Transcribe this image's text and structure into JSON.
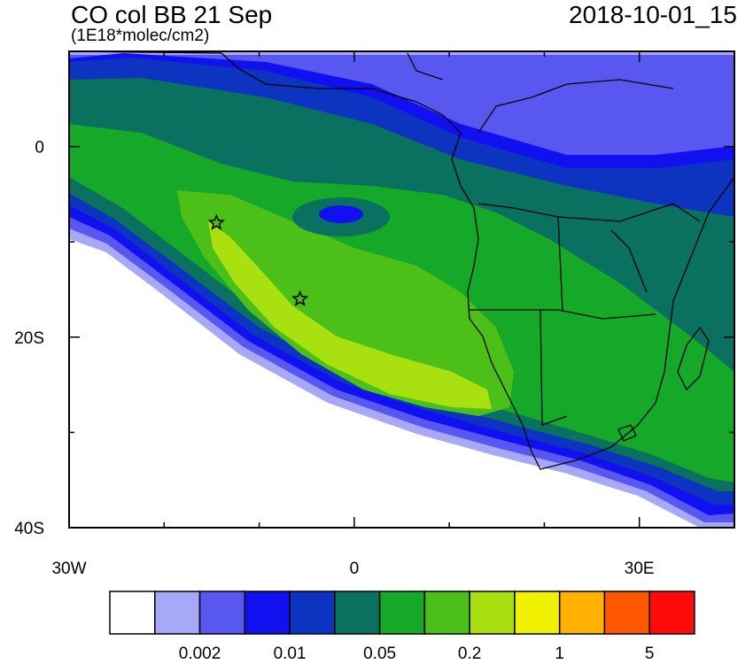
{
  "header": {
    "title": "CO col BB 21 Sep",
    "units": "(1E18*molec/cm2)",
    "datetime": "2018-10-01_15"
  },
  "axes": {
    "y_ticks": [
      {
        "value": 0,
        "label": "0"
      },
      {
        "value": -20,
        "label": "20S"
      },
      {
        "value": -40,
        "label": "40S"
      }
    ],
    "x_ticks": [
      {
        "value": -30,
        "label": "30W"
      },
      {
        "value": 0,
        "label": "0"
      },
      {
        "value": 30,
        "label": "30E"
      }
    ],
    "lon_range": [
      -30,
      40
    ],
    "lat_range": [
      -40,
      10
    ]
  },
  "markers": [
    {
      "name": "star-marker-1",
      "lon": -14.5,
      "lat": -8.0
    },
    {
      "name": "star-marker-2",
      "lon": -5.7,
      "lat": -16.0
    }
  ],
  "colorbar": {
    "colors": [
      "#ffffff",
      "#a8a8f8",
      "#5858f0",
      "#1010f0",
      "#0c34c0",
      "#0a7060",
      "#16a828",
      "#4cc018",
      "#a8e010",
      "#f0f000",
      "#ffb000",
      "#ff5800",
      "#ff0a0a"
    ],
    "labels": [
      {
        "boundary": 2,
        "text": "0.002"
      },
      {
        "boundary": 4,
        "text": "0.01"
      },
      {
        "boundary": 6,
        "text": "0.05"
      },
      {
        "boundary": 8,
        "text": "0.2"
      },
      {
        "boundary": 10,
        "text": "1"
      },
      {
        "boundary": 12,
        "text": "5"
      }
    ]
  }
}
